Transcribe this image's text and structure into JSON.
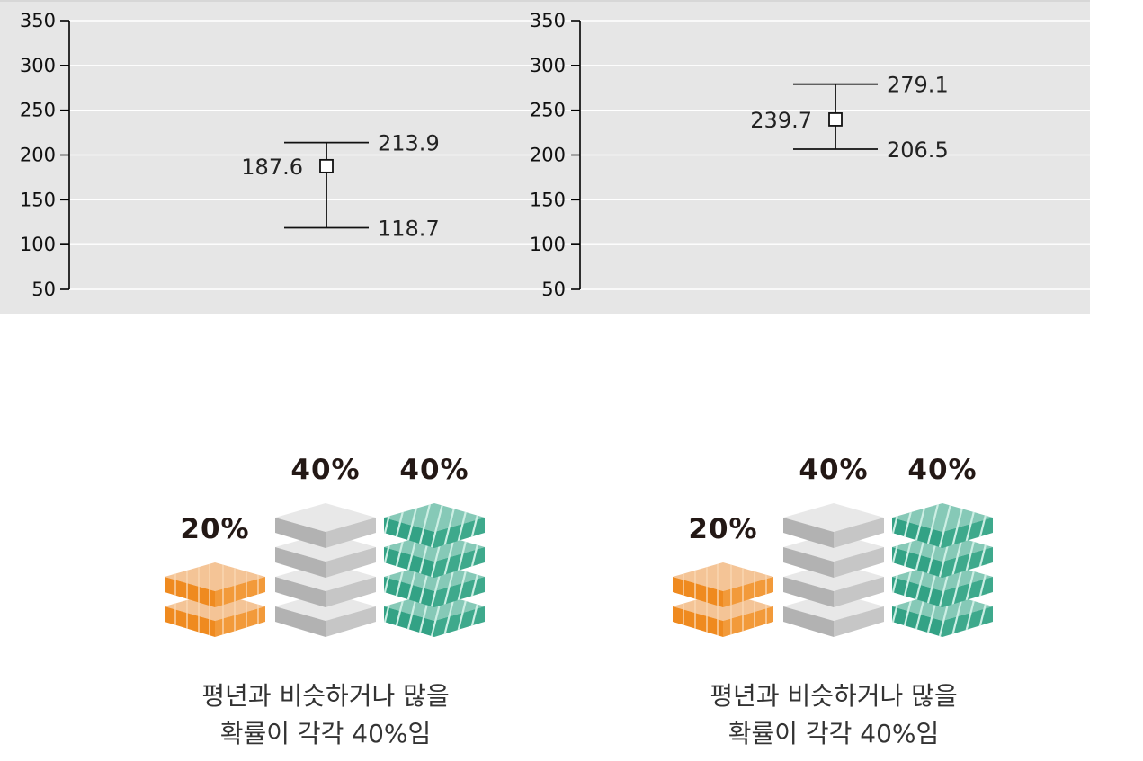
{
  "chart_data": [
    {
      "type": "errorbar",
      "ylim": [
        50,
        350
      ],
      "yticks": [
        350,
        300,
        250,
        200,
        150,
        100,
        50
      ],
      "grid": true,
      "point": {
        "value": 187.6,
        "lower": 118.7,
        "upper": 213.9
      }
    },
    {
      "type": "errorbar",
      "ylim": [
        50,
        350
      ],
      "yticks": [
        350,
        300,
        250,
        200,
        150,
        100,
        50
      ],
      "grid": true,
      "point": {
        "value": 239.7,
        "lower": 206.5,
        "upper": 279.1
      }
    }
  ],
  "forecasts": [
    {
      "categories": [
        {
          "label": "20%",
          "value": 20,
          "color": "#ef8a1f"
        },
        {
          "label": "40%",
          "value": 40,
          "color": "#b4b4b4"
        },
        {
          "label": "40%",
          "value": 40,
          "color": "#3aa58a"
        }
      ],
      "caption": [
        "평년과 비슷하거나 많을",
        "확률이 각각 40%임"
      ]
    },
    {
      "categories": [
        {
          "label": "20%",
          "value": 20,
          "color": "#ef8a1f"
        },
        {
          "label": "40%",
          "value": 40,
          "color": "#b4b4b4"
        },
        {
          "label": "40%",
          "value": 40,
          "color": "#3aa58a"
        }
      ],
      "caption": [
        "평년과 비슷하거나 많을",
        "확률이 각각 40%임"
      ]
    }
  ]
}
